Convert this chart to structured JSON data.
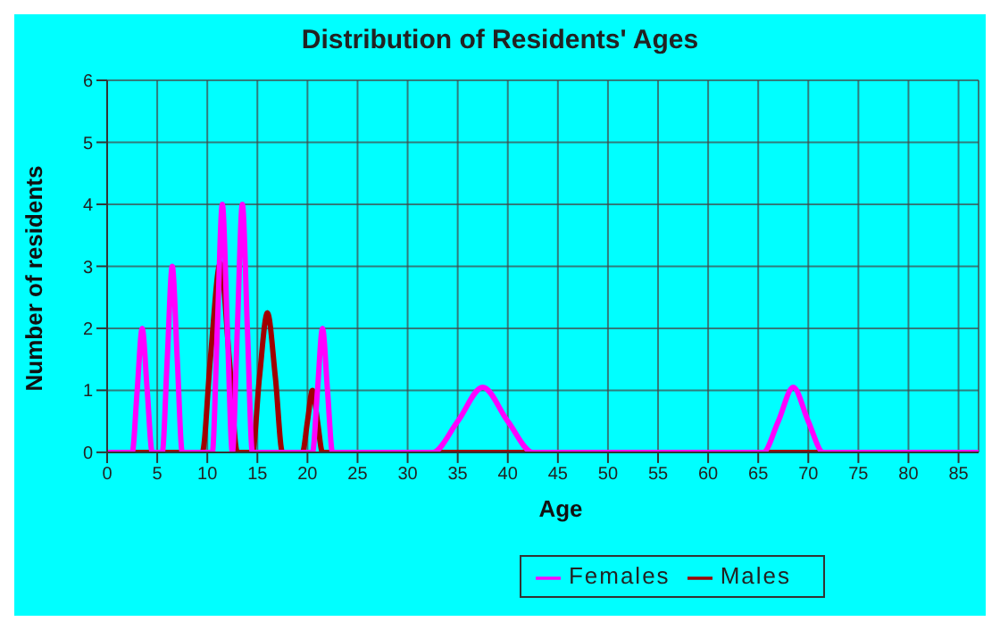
{
  "chart_data": {
    "type": "line",
    "title": "Distribution of Residents' Ages",
    "xlabel": "Age",
    "ylabel": "Number of residents",
    "xlim": [
      0,
      87
    ],
    "xticks": [
      0,
      5,
      10,
      15,
      20,
      25,
      30,
      35,
      40,
      45,
      50,
      55,
      60,
      65,
      70,
      75,
      80,
      85
    ],
    "ylim": [
      0,
      6
    ],
    "yticks": [
      0,
      1,
      2,
      3,
      4,
      5,
      6
    ],
    "grid": true,
    "legend": "bottom right",
    "series": [
      {
        "name": "Males",
        "color": "#a00000",
        "x": [
          0,
          9.5,
          10.3,
          11.3,
          12.2,
          13,
          14.5,
          15.2,
          16,
          16.8,
          17.5,
          19.5,
          20,
          20.5,
          21,
          21.5,
          87
        ],
        "values": [
          0,
          0,
          1.5,
          3.05,
          1.5,
          0,
          0,
          1.2,
          2.25,
          1.2,
          0,
          0,
          0.5,
          1,
          0.5,
          0,
          0
        ]
      },
      {
        "name": "Females",
        "color": "#ff00ff",
        "x": [
          0,
          2.5,
          3,
          3.5,
          4,
          4.5,
          5.5,
          6,
          6.5,
          7,
          7.5,
          10,
          10.5,
          11,
          11.5,
          12,
          12.5,
          13,
          13.5,
          14,
          14.5,
          20.5,
          21,
          21.5,
          22,
          22.5,
          32.5,
          35,
          37.5,
          40,
          42.5,
          65.5,
          67,
          68.5,
          70,
          71.5,
          87
        ],
        "values": [
          0,
          0,
          1,
          2,
          1,
          0,
          0,
          1.5,
          3,
          1.5,
          0,
          0,
          0,
          2,
          4,
          2,
          0,
          2,
          4,
          2,
          0,
          0,
          1,
          2,
          1,
          0,
          0,
          0.5,
          1.05,
          0.5,
          0,
          0,
          0.5,
          1.05,
          0.5,
          0,
          0
        ]
      }
    ]
  }
}
